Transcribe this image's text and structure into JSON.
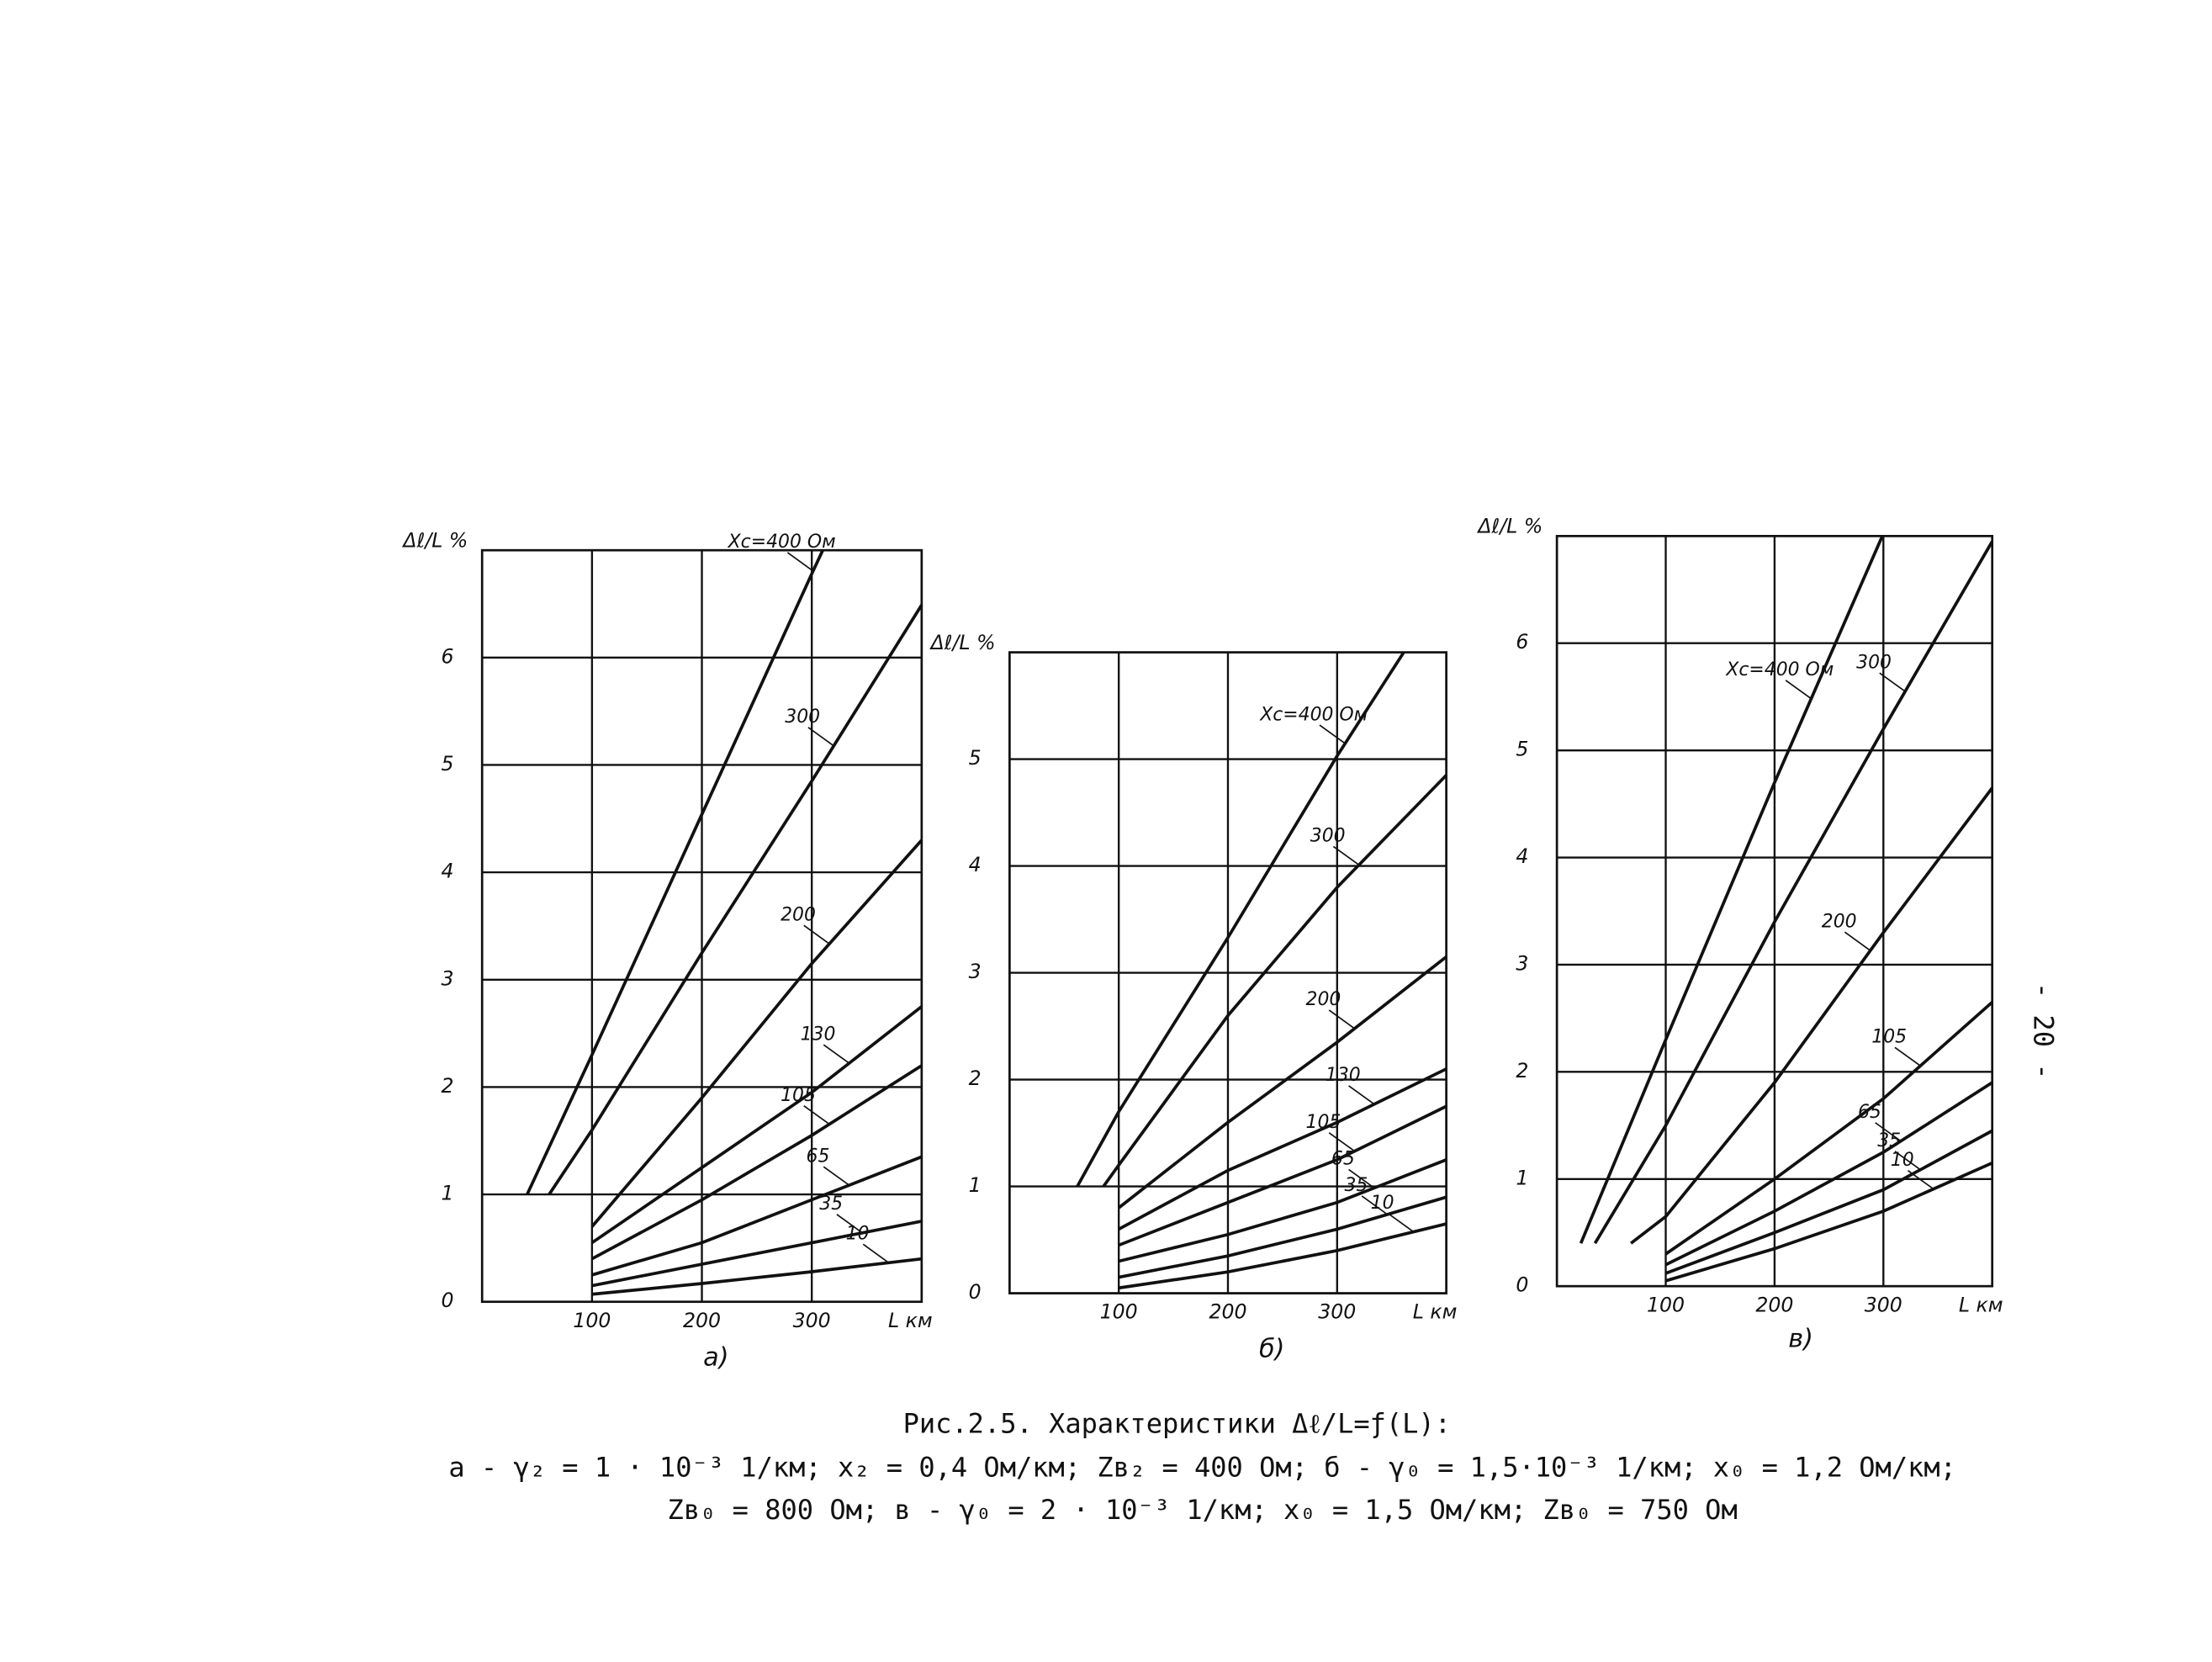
{
  "chart_data": [
    {
      "type": "line",
      "title": "а)",
      "x_label": "L км",
      "y_label": "Δℓ/L %",
      "xlim": [
        0,
        400
      ],
      "ylim": [
        0,
        7
      ],
      "xticks": [
        100,
        200,
        300
      ],
      "yticks": [
        0,
        1,
        2,
        3,
        4,
        5,
        6
      ],
      "grid": true,
      "series": [
        {
          "name": "Xc=400 Ом",
          "color": "#111",
          "x": [
            41,
            100,
            200,
            300,
            310
          ],
          "values": [
            1,
            2.3,
            4.54,
            6.78,
            7
          ]
        },
        {
          "name": "300",
          "color": "#111",
          "x": [
            61,
            100,
            200,
            300,
            400
          ],
          "values": [
            1,
            1.6,
            3.25,
            4.85,
            6.49
          ]
        },
        {
          "name": "200",
          "color": "#111",
          "x": [
            100,
            200,
            300,
            400
          ],
          "values": [
            0.7,
            1.9,
            3.15,
            4.3
          ]
        },
        {
          "name": "130",
          "color": "#111",
          "x": [
            100,
            200,
            300,
            400
          ],
          "values": [
            0.55,
            1.25,
            1.95,
            2.75
          ]
        },
        {
          "name": "105",
          "color": "#111",
          "x": [
            100,
            200,
            300,
            400
          ],
          "values": [
            0.4,
            0.95,
            1.55,
            2.2
          ]
        },
        {
          "name": "65",
          "color": "#111",
          "x": [
            100,
            200,
            300,
            400
          ],
          "values": [
            0.25,
            0.55,
            0.95,
            1.35
          ]
        },
        {
          "name": "35",
          "color": "#111",
          "x": [
            100,
            200,
            300,
            400
          ],
          "values": [
            0.15,
            0.35,
            0.55,
            0.75
          ]
        },
        {
          "name": "10",
          "color": "#111",
          "x": [
            100,
            200,
            300,
            400
          ],
          "values": [
            0.07,
            0.17,
            0.28,
            0.4
          ]
        }
      ]
    },
    {
      "type": "line",
      "title": "б)",
      "x_label": "L км",
      "y_label": "Δℓ/L %",
      "xlim": [
        0,
        400
      ],
      "ylim": [
        0,
        6
      ],
      "xticks": [
        100,
        200,
        300
      ],
      "yticks": [
        0,
        1,
        2,
        3,
        4,
        5
      ],
      "grid": true,
      "series": [
        {
          "name": "Xc=400 Ом",
          "color": "#111",
          "x": [
            62,
            100,
            200,
            300,
            361
          ],
          "values": [
            1,
            1.7,
            3.33,
            5.03,
            6
          ]
        },
        {
          "name": "300",
          "color": "#111",
          "x": [
            86,
            100,
            200,
            300,
            400
          ],
          "values": [
            1,
            1.2,
            2.6,
            3.8,
            4.85
          ]
        },
        {
          "name": "200",
          "color": "#111",
          "x": [
            100,
            200,
            300,
            400
          ],
          "values": [
            0.8,
            1.6,
            2.35,
            3.15
          ]
        },
        {
          "name": "130",
          "color": "#111",
          "x": [
            100,
            200,
            300,
            400
          ],
          "values": [
            0.6,
            1.15,
            1.6,
            2.1
          ]
        },
        {
          "name": "105",
          "color": "#111",
          "x": [
            100,
            200,
            300,
            400
          ],
          "values": [
            0.45,
            0.85,
            1.25,
            1.75
          ]
        },
        {
          "name": "65",
          "color": "#111",
          "x": [
            100,
            200,
            300,
            400
          ],
          "values": [
            0.3,
            0.55,
            0.85,
            1.25
          ]
        },
        {
          "name": "35",
          "color": "#111",
          "x": [
            100,
            200,
            300,
            400
          ],
          "values": [
            0.15,
            0.35,
            0.6,
            0.9
          ]
        },
        {
          "name": "10",
          "color": "#111",
          "x": [
            100,
            200,
            300,
            400
          ],
          "values": [
            0.05,
            0.2,
            0.4,
            0.65
          ]
        }
      ]
    },
    {
      "type": "line",
      "title": "в)",
      "x_label": "L км",
      "y_label": "Δℓ/L %",
      "xlim": [
        0,
        400
      ],
      "ylim": [
        0,
        7
      ],
      "xticks": [
        100,
        200,
        300
      ],
      "yticks": [
        0,
        1,
        2,
        3,
        4,
        5,
        6
      ],
      "grid": true,
      "series": [
        {
          "name": "Xc=400 Ом",
          "color": "#111",
          "x": [
            22,
            100,
            200,
            299
          ],
          "values": [
            0.4,
            2.3,
            4.7,
            7
          ]
        },
        {
          "name": "300",
          "color": "#111",
          "x": [
            35,
            100,
            200,
            300,
            400
          ],
          "values": [
            0.4,
            1.5,
            3.4,
            5.2,
            6.95
          ]
        },
        {
          "name": "200",
          "color": "#111",
          "x": [
            68,
            100,
            200,
            300,
            400
          ],
          "values": [
            0.4,
            0.65,
            1.9,
            3.3,
            4.65
          ]
        },
        {
          "name": "105",
          "color": "#111",
          "x": [
            100,
            200,
            300,
            400
          ],
          "values": [
            0.3,
            1.0,
            1.75,
            2.65
          ]
        },
        {
          "name": "65",
          "color": "#111",
          "x": [
            100,
            200,
            300,
            400
          ],
          "values": [
            0.2,
            0.7,
            1.25,
            1.9
          ]
        },
        {
          "name": "35",
          "color": "#111",
          "x": [
            100,
            200,
            300,
            400
          ],
          "values": [
            0.12,
            0.5,
            0.9,
            1.45
          ]
        },
        {
          "name": "10",
          "color": "#111",
          "x": [
            100,
            200,
            300,
            400
          ],
          "values": [
            0.05,
            0.35,
            0.7,
            1.15
          ]
        }
      ]
    }
  ],
  "figure_caption": {
    "title": "Рис.2.5. Характеристики Δℓ/L=ƒ(L):",
    "lines": [
      "а - γ₂ = 1 · 10⁻³ 1/км; x₂ = 0,4 Ом/км; Zв₂ = 400 Ом; б - γ₀ = 1,5·10⁻³ 1/км; x₀ = 1,2 Ом/км;",
      "Zв₀ = 800 Ом; в - γ₀ = 2 · 10⁻³ 1/км;   x₀ = 1,5 Ом/км;  Zв₀ = 750 Ом"
    ]
  },
  "page_number": "- 20 -"
}
